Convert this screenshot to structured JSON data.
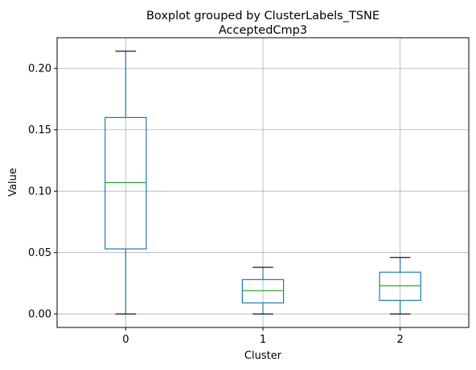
{
  "chart_data": {
    "type": "box",
    "suptitle": "Boxplot grouped by ClusterLabels_TSNE",
    "title": "AcceptedCmp3",
    "xlabel": "Cluster",
    "ylabel": "Value",
    "categories": [
      "0",
      "1",
      "2"
    ],
    "ylim": [
      -0.011,
      0.225
    ],
    "yticks": [
      0.0,
      0.05,
      0.1,
      0.15,
      0.2
    ],
    "ytick_labels": [
      "0.00",
      "0.05",
      "0.10",
      "0.15",
      "0.20"
    ],
    "grid": true,
    "boxes": [
      {
        "category": "0",
        "whisker_low": 0.0,
        "q1": 0.053,
        "median": 0.107,
        "q3": 0.16,
        "whisker_high": 0.214
      },
      {
        "category": "1",
        "whisker_low": 0.0,
        "q1": 0.009,
        "median": 0.019,
        "q3": 0.028,
        "whisker_high": 0.038
      },
      {
        "category": "2",
        "whisker_low": 0.0,
        "q1": 0.011,
        "median": 0.023,
        "q3": 0.034,
        "whisker_high": 0.046
      }
    ],
    "colors": {
      "box": "#1f77b4",
      "median": "#2ca02c",
      "whisker": "#1f77b4",
      "cap": "#000000",
      "grid": "#b0b0b0"
    }
  }
}
